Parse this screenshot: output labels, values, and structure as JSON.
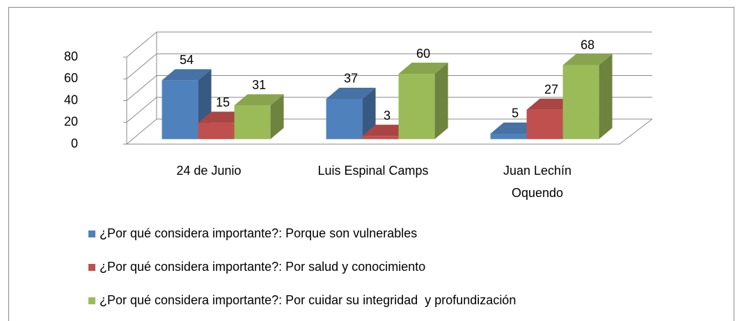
{
  "chart_data": {
    "type": "bar3d",
    "categories": [
      "24 de Junio",
      "Luis Espinal Camps",
      "Juan Lechín Oquendo"
    ],
    "series": [
      {
        "name": "¿Por qué considera importante?: Porque son vulnerables",
        "color": "#4f81bd",
        "values": [
          54,
          37,
          5
        ]
      },
      {
        "name": "¿Por qué considera importante?: Por salud y conocimiento",
        "color": "#c0504d",
        "values": [
          15,
          3,
          27
        ]
      },
      {
        "name": "¿Por qué considera importante?: Por cuidar su integridad  y profundización",
        "color": "#9bbb59",
        "values": [
          31,
          60,
          68
        ]
      }
    ],
    "ylim": [
      0,
      80
    ],
    "yticks": [
      0,
      20,
      40,
      60,
      80
    ],
    "grid": true,
    "legend": "bottom"
  }
}
